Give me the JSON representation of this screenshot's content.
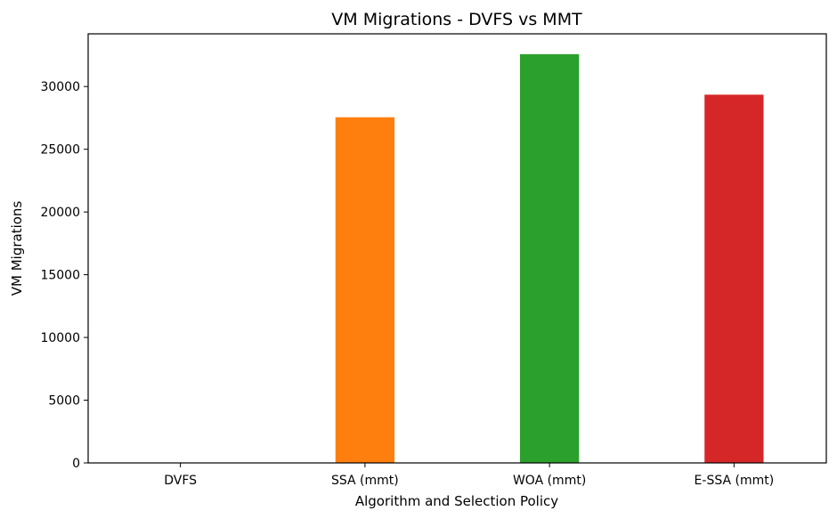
{
  "chart_data": {
    "type": "bar",
    "title": "VM Migrations - DVFS vs MMT",
    "xlabel": "Algorithm and Selection Policy",
    "ylabel": "VM Migrations",
    "categories": [
      "DVFS",
      "SSA (mmt)",
      "WOA (mmt)",
      "E-SSA (mmt)"
    ],
    "values": [
      0,
      27550,
      32580,
      29350
    ],
    "colors": [
      "#1f77b4",
      "#ff7f0e",
      "#2ca02c",
      "#d62728"
    ],
    "ylim": [
      0,
      34200
    ],
    "yticks": [
      0,
      5000,
      10000,
      15000,
      20000,
      25000,
      30000
    ],
    "grid": false,
    "legend": "none"
  }
}
